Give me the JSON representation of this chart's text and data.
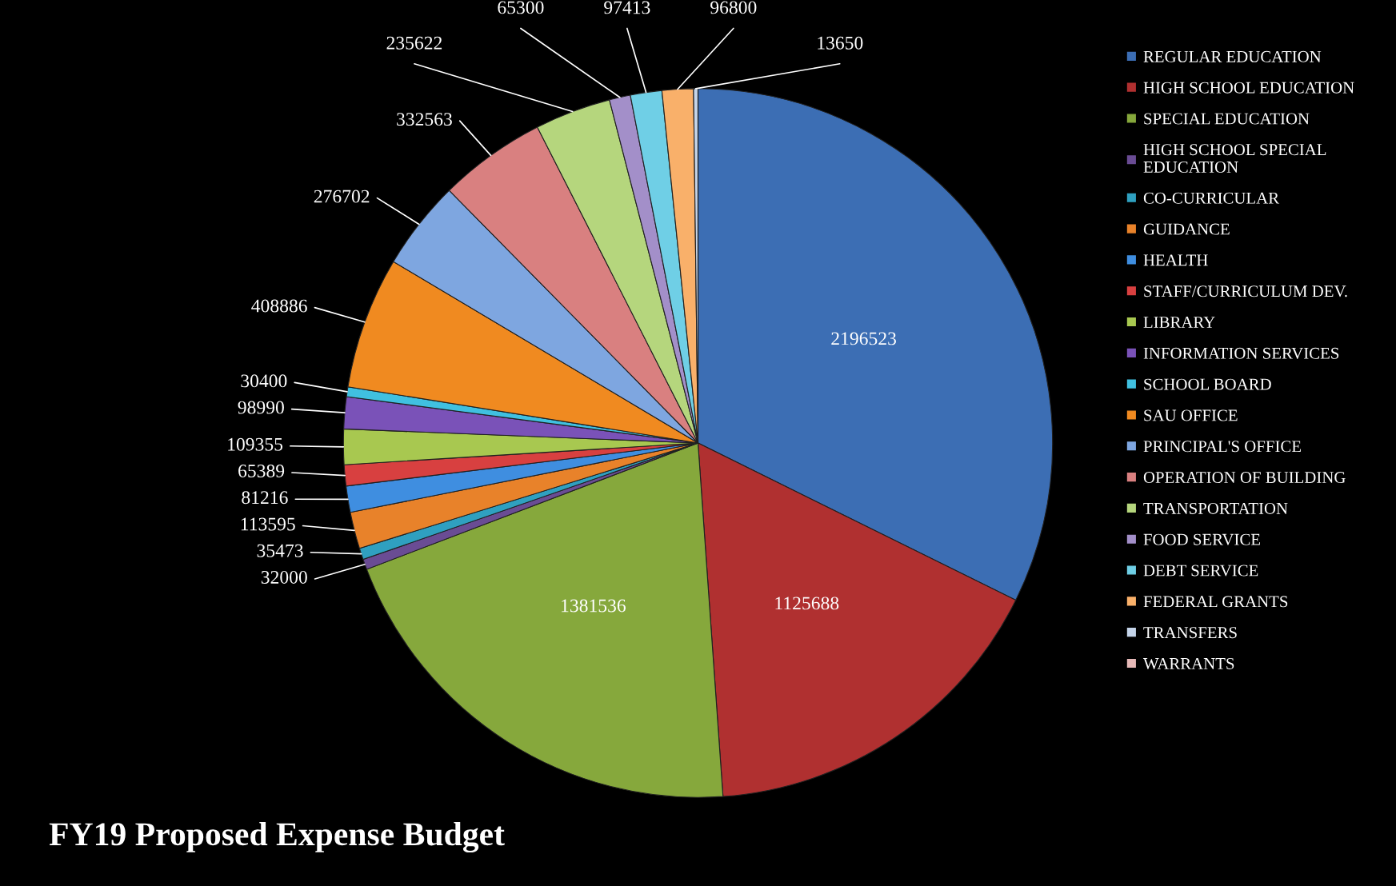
{
  "chart_data": {
    "type": "pie",
    "title": "FY19 Proposed Expense Budget",
    "categories": [
      "REGULAR EDUCATION",
      "HIGH SCHOOL EDUCATION",
      "SPECIAL EDUCATION",
      "HIGH SCHOOL SPECIAL\nEDUCATION",
      "CO-CURRICULAR",
      "GUIDANCE",
      "HEALTH",
      "STAFF/CURRICULUM DEV.",
      "LIBRARY",
      "INFORMATION SERVICES",
      "SCHOOL BOARD",
      "SAU OFFICE",
      "PRINCIPAL'S OFFICE",
      "OPERATION OF BUILDING",
      "TRANSPORTATION",
      "FOOD SERVICE",
      "DEBT SERVICE",
      "FEDERAL GRANTS",
      "TRANSFERS",
      "WARRANTS"
    ],
    "values": [
      2196523,
      1125688,
      1381536,
      32000,
      35473,
      113595,
      81216,
      65389,
      109355,
      98990,
      30400,
      408886,
      276702,
      332563,
      235622,
      65300,
      97413,
      96800,
      13650,
      null
    ],
    "value_labels": [
      "2196523",
      "1125688",
      "1381536",
      "32000",
      "35473",
      "113595",
      "81216",
      "65389",
      "109355",
      "98990",
      "30400",
      "408886",
      "276702",
      "332563",
      "235622",
      "65300",
      "97413",
      "96800",
      "13650",
      null
    ],
    "colors": [
      "#3c6eb4",
      "#b03030",
      "#86a83c",
      "#6a4c94",
      "#2fa0c0",
      "#e8822a",
      "#3f8ee0",
      "#d84040",
      "#a8c850",
      "#7a52b8",
      "#40c0e0",
      "#f08a20",
      "#7ea6e0",
      "#d98080",
      "#b5d67d",
      "#a38fc9",
      "#6fcfe6",
      "#f9b06a",
      "#c5d5ea",
      "#e6b9b8"
    ],
    "legend": "right"
  }
}
